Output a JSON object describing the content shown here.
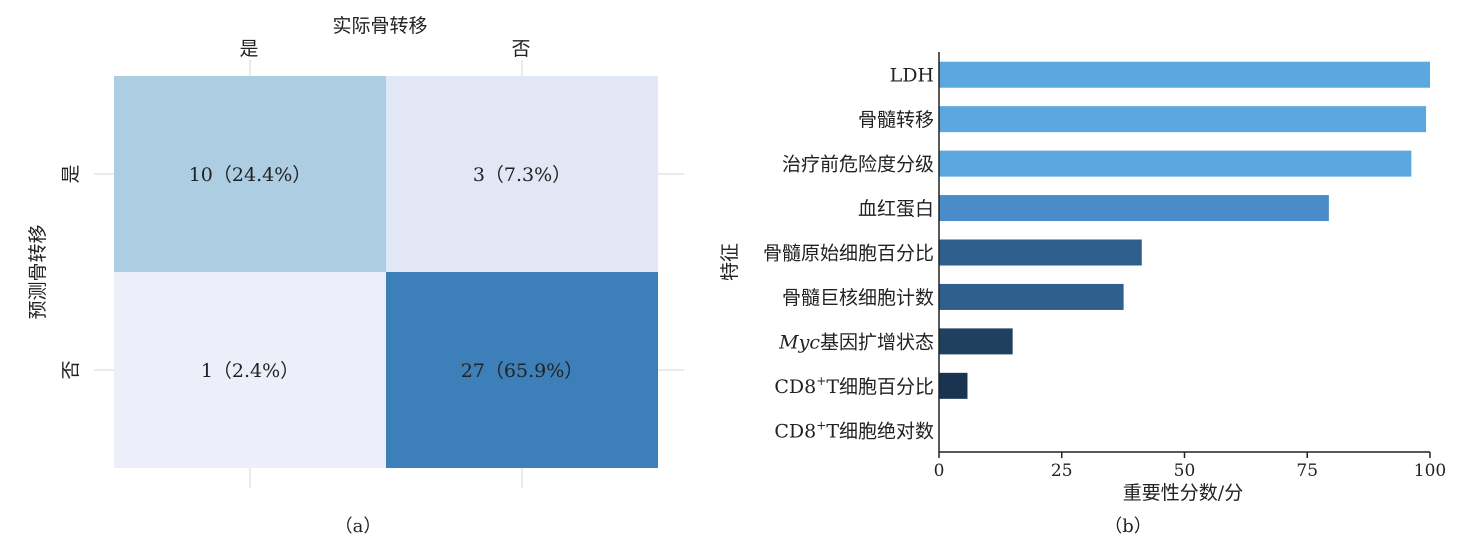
{
  "chart_data": [
    {
      "type": "heatmap",
      "panel_label": "（a）",
      "xlabel": "实际骨转移",
      "ylabel": "预测骨转移",
      "x_categories": [
        "是",
        "否"
      ],
      "y_categories": [
        "是",
        "否"
      ],
      "values": [
        [
          10,
          3
        ],
        [
          1,
          27
        ]
      ],
      "cell_labels": [
        [
          "10（24.4%）",
          "3（7.3%）"
        ],
        [
          "1（2.4%）",
          "27（65.9%）"
        ]
      ],
      "colors": [
        [
          "#adcde3",
          "#e1e7f5"
        ],
        [
          "#eceff9",
          "#3d80b9"
        ]
      ]
    },
    {
      "type": "bar",
      "orientation": "horizontal",
      "panel_label": "（b）",
      "xlabel": "重要性分数/分",
      "ylabel": "特征",
      "xlim": [
        0,
        100
      ],
      "xticks": [
        "0",
        "25",
        "50",
        "75",
        "100"
      ],
      "categories": [
        {
          "pre": "LDH",
          "italic": "",
          "sup": "",
          "post": ""
        },
        {
          "pre": "骨髓转移",
          "italic": "",
          "sup": "",
          "post": ""
        },
        {
          "pre": "治疗前危险度分级",
          "italic": "",
          "sup": "",
          "post": ""
        },
        {
          "pre": "血红蛋白",
          "italic": "",
          "sup": "",
          "post": ""
        },
        {
          "pre": "骨髓原始细胞百分比",
          "italic": "",
          "sup": "",
          "post": ""
        },
        {
          "pre": "骨髓巨核细胞计数",
          "italic": "",
          "sup": "",
          "post": ""
        },
        {
          "pre": "",
          "italic": "Myc",
          "sup": "",
          "post": "基因扩增状态"
        },
        {
          "pre": "CD8",
          "italic": "",
          "sup": "+",
          "post": "T细胞百分比"
        },
        {
          "pre": "CD8",
          "italic": "",
          "sup": "+",
          "post": "T细胞绝对数"
        }
      ],
      "values": [
        100,
        99.2,
        96.2,
        79.4,
        41.3,
        37.6,
        15.0,
        5.8,
        0
      ],
      "colors": [
        "#5ba7df",
        "#5ba7df",
        "#5ba7df",
        "#4a8cc9",
        "#2f5f8c",
        "#2f5f8c",
        "#20405f",
        "#1a3350",
        "#1a3350"
      ]
    }
  ]
}
